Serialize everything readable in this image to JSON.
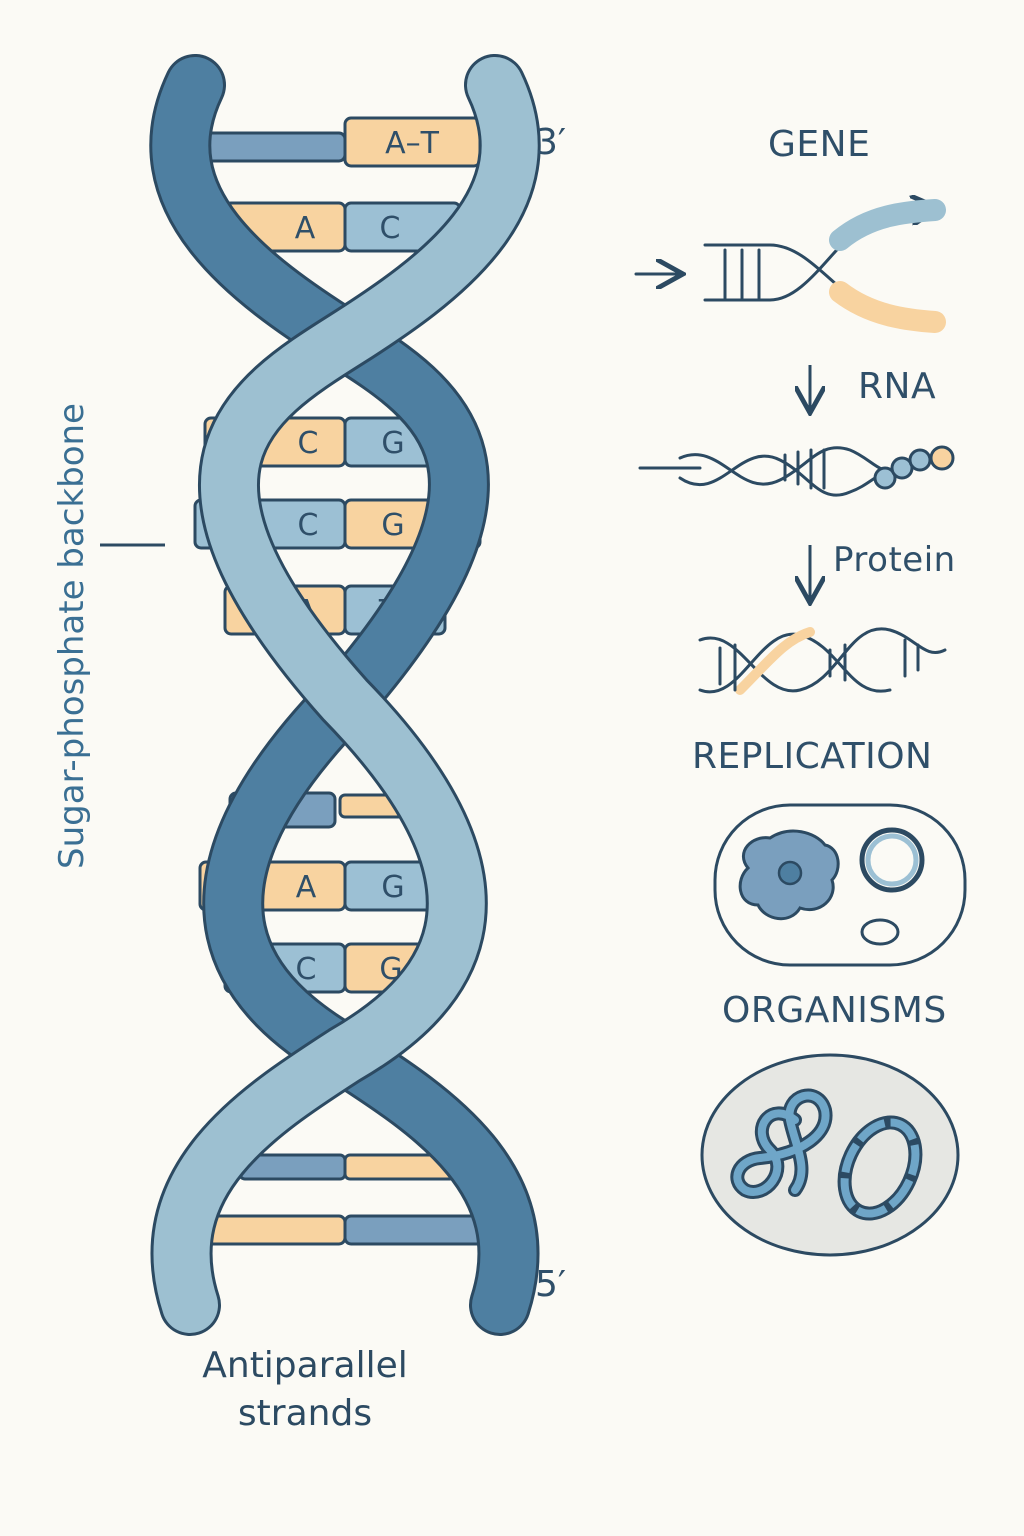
{
  "labels": {
    "three_prime": "3′",
    "five_prime": "5′",
    "backbone": "Sugar-phosphate backbone",
    "antiparallel_line1": "Antiparallel",
    "antiparallel_line2": "strands",
    "gene": "GENE",
    "rna": "RNA",
    "protein": "Protein",
    "replication": "REPLICATION",
    "organisms": "ORGANISMS"
  },
  "base_pairs": [
    {
      "left": "",
      "right": "A–T"
    },
    {
      "left": "A",
      "right": "C"
    },
    {
      "left": "C",
      "right": "G"
    },
    {
      "left": "C",
      "right": "G"
    },
    {
      "left": "A",
      "right": "T"
    },
    {
      "left": "",
      "right": ""
    },
    {
      "left": "A",
      "right": "G"
    },
    {
      "left": "C",
      "right": "G"
    },
    {
      "left": "",
      "right": ""
    },
    {
      "left": "",
      "right": ""
    }
  ],
  "colors": {
    "background": "#fbfaf5",
    "strand_dark": "#4e7fa1",
    "strand_light": "#9dc0d1",
    "outline": "#2c4a62",
    "base_orange": "#f8d3a0",
    "base_blue": "#9cc0d4",
    "base_dark_blue": "#7a9fbe"
  }
}
